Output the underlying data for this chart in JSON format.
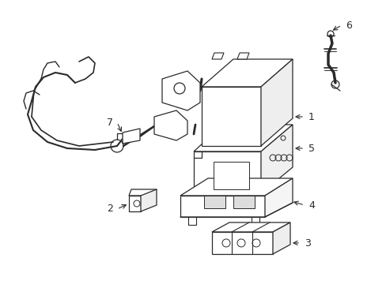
{
  "bg_color": "#ffffff",
  "line_color": "#2a2a2a",
  "lw": 0.9,
  "figsize": [
    4.89,
    3.6
  ],
  "dpi": 100
}
